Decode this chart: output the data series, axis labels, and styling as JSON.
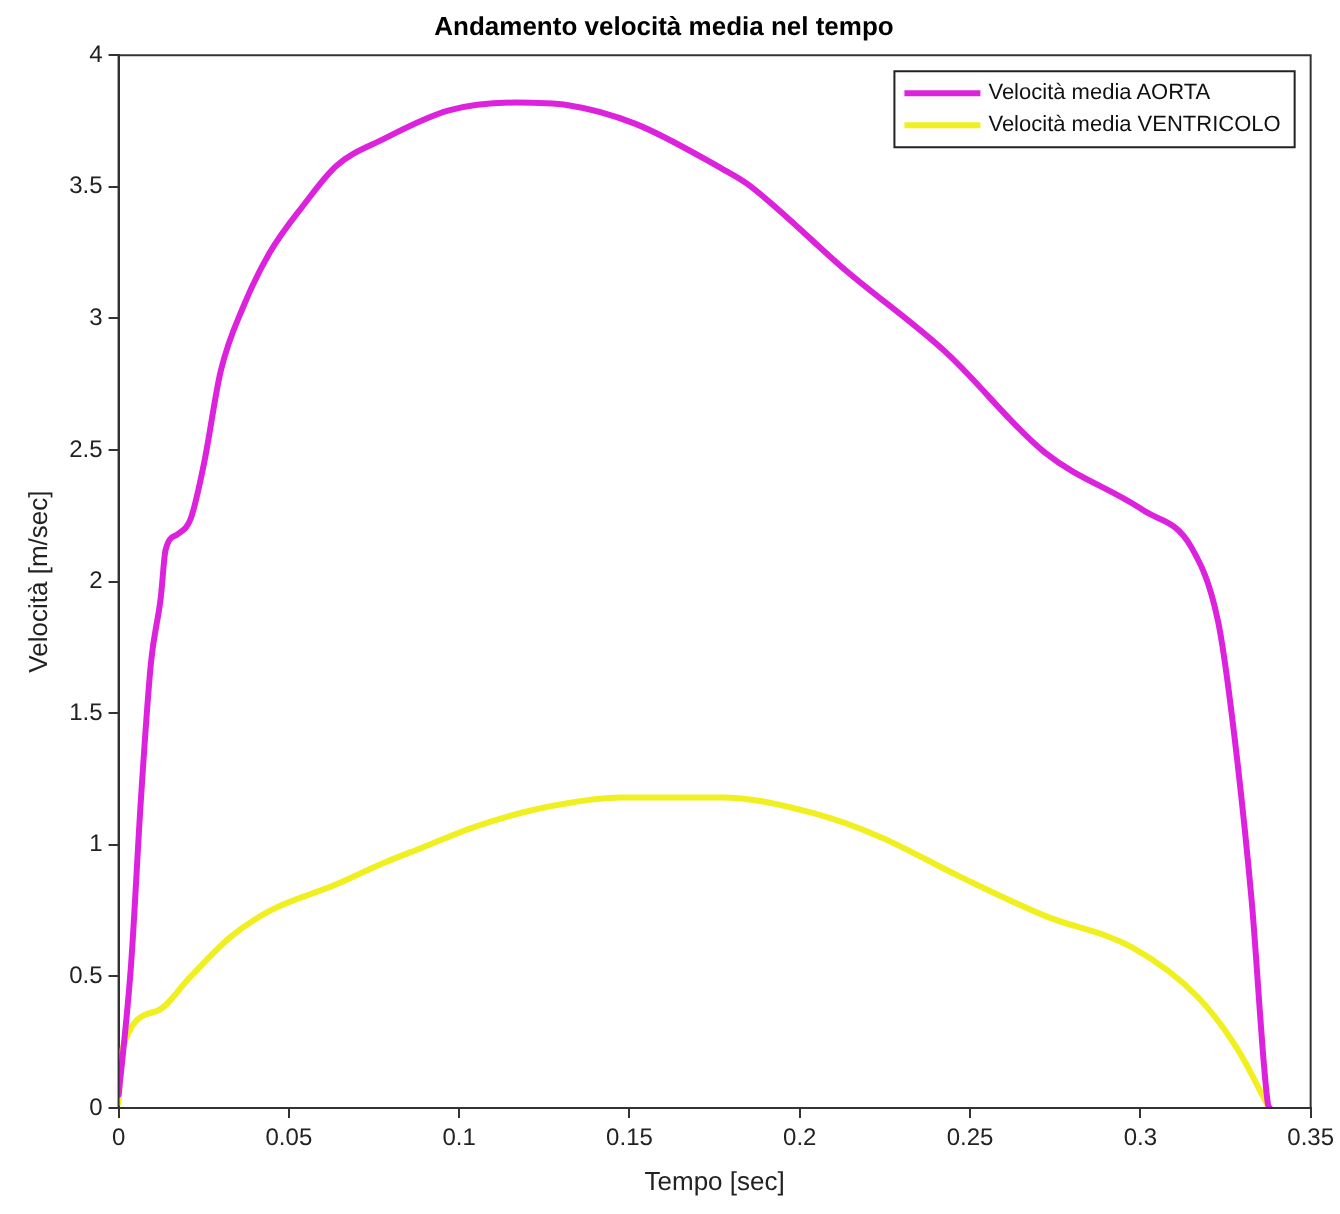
{
  "chart_data": {
    "type": "line",
    "title": "Andamento velocità media nel tempo",
    "xlabel": "Tempo [sec]",
    "ylabel": "Velocità [m/sec]",
    "xlim": [
      0,
      0.35
    ],
    "xticks": [
      0,
      0.05,
      0.1,
      0.15,
      0.2,
      0.25,
      0.3,
      0.35
    ],
    "ylim": [
      0,
      4
    ],
    "yticks": [
      0,
      0.5,
      1,
      1.5,
      2,
      2.5,
      3,
      3.5,
      4
    ],
    "grid": false,
    "legend": "top right",
    "marker": "none",
    "line_style": "solid",
    "series": [
      {
        "name": "Velocità media AORTA",
        "color": "#dd22dd",
        "x": [
          0,
          0.001,
          0.0037,
          0.0066,
          0.0095,
          0.0124,
          0.0138,
          0.0173,
          0.0212,
          0.0251,
          0.03,
          0.0368,
          0.0444,
          0.0543,
          0.064,
          0.0776,
          0.097,
          0.1166,
          0.132,
          0.1516,
          0.177,
          0.1847,
          0.2137,
          0.243,
          0.272,
          0.301,
          0.315,
          0.3228,
          0.3267,
          0.3326,
          0.3374,
          0.338
        ],
        "values": [
          0.05,
          0.17,
          0.55,
          1.18,
          1.69,
          1.94,
          2.12,
          2.18,
          2.24,
          2.45,
          2.8,
          3.05,
          3.25,
          3.43,
          3.58,
          3.68,
          3.79,
          3.82,
          3.81,
          3.74,
          3.57,
          3.51,
          3.18,
          2.87,
          2.49,
          2.27,
          2.13,
          1.85,
          1.51,
          0.8,
          0.02,
          0
        ]
      },
      {
        "name": "Velocità media VENTRICOLO",
        "color": "#f0f020",
        "x": [
          0,
          0.001,
          0.0115,
          0.0212,
          0.0329,
          0.0445,
          0.064,
          0.0776,
          0.0893,
          0.105,
          0.1243,
          0.1477,
          0.165,
          0.177,
          0.204,
          0.2236,
          0.2469,
          0.272,
          0.2976,
          0.317,
          0.3287,
          0.3374
        ],
        "values": [
          0.02,
          0.22,
          0.37,
          0.5,
          0.65,
          0.75,
          0.85,
          0.93,
          0.99,
          1.07,
          1.14,
          1.18,
          1.18,
          1.18,
          1.12,
          1.03,
          0.88,
          0.73,
          0.61,
          0.42,
          0.22,
          0.01
        ]
      }
    ]
  }
}
